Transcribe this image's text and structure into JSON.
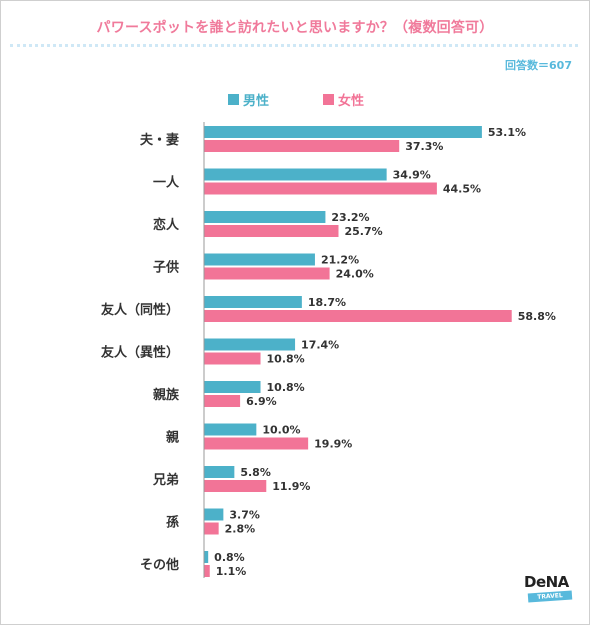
{
  "title": "パワースポットを誰と訪れたいと思いますか？（複数回答可）",
  "respondents": "回答数＝607",
  "colors": {
    "male": "#4cb1c9",
    "female": "#f27497",
    "title": "#f07a9b",
    "accent": "#58b9dc"
  },
  "logo": {
    "main": "DeNA",
    "sub": "TRAVEL"
  },
  "chart_data": {
    "type": "bar",
    "orientation": "horizontal",
    "categories": [
      "夫・妻",
      "一人",
      "恋人",
      "子供",
      "友人（同性）",
      "友人（異性）",
      "親族",
      "親",
      "兄弟",
      "孫",
      "その他"
    ],
    "series": [
      {
        "name": "男性",
        "color": "#4cb1c9",
        "values": [
          53.1,
          34.9,
          23.2,
          21.2,
          18.7,
          17.4,
          10.8,
          10.0,
          5.8,
          3.7,
          0.8
        ]
      },
      {
        "name": "女性",
        "color": "#f27497",
        "values": [
          37.3,
          44.5,
          25.7,
          24.0,
          58.8,
          10.8,
          6.9,
          19.9,
          11.9,
          2.8,
          1.1
        ]
      }
    ],
    "value_suffix": "%",
    "xlim": [
      0,
      60
    ],
    "grid": false,
    "legend_position": "top"
  }
}
